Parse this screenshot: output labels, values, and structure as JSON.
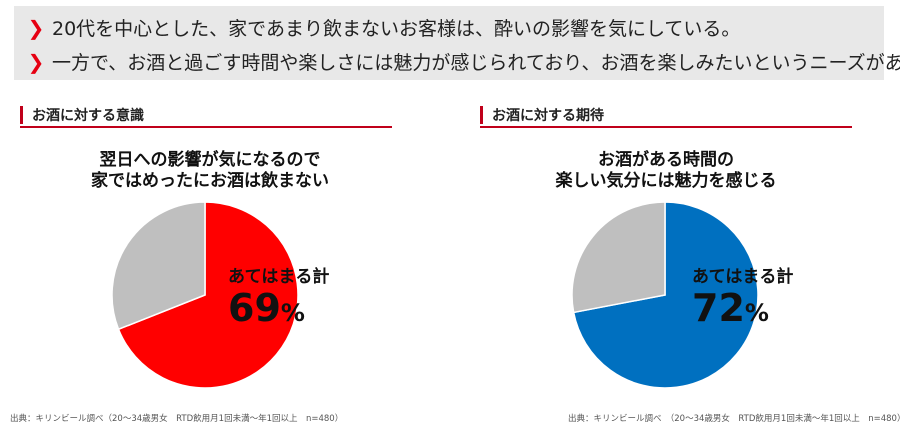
{
  "summary": {
    "items": [
      "20代を中心とした、家であまり飲まないお客様は、酔いの影響を気にしている。",
      "一方で、お酒と過ごす時間や楽しさには魅力が感じられており、お酒を楽しみたいというニーズがある。"
    ]
  },
  "left": {
    "section_title": "お酒に対する意識",
    "question_line1": "翌日への影響が気になるので",
    "question_line2": "家ではめったにお酒は飲まない",
    "callout_label": "あてはまる計",
    "callout_value": "69",
    "callout_unit": "%",
    "source": "出典：キリンビール調べ（20～34歳男女　RTD飲用月1回未満～年1回以上　n=480）"
  },
  "right": {
    "section_title": "お酒に対する期待",
    "question_line1": "お酒がある時間の",
    "question_line2": "楽しい気分には魅力を感じる",
    "callout_label": "あてはまる計",
    "callout_value": "72",
    "callout_unit": "%",
    "source": "出典：キリンビール調べ　（20～34歳男女　RTD飲用月1回未満～年1回以上　n=480）"
  },
  "colors": {
    "accent": "#e60012",
    "left_slice": "#ff0000",
    "right_slice": "#0070c0",
    "rest_slice": "#bfbfbf"
  },
  "chart_data": [
    {
      "type": "pie",
      "title": "翌日への影響が気になるので 家ではめったにお酒は飲まない",
      "slices": [
        {
          "label": "あてはまる計",
          "value": 69,
          "color": "#ff0000"
        },
        {
          "label": "",
          "value": 31,
          "color": "#bfbfbf"
        }
      ]
    },
    {
      "type": "pie",
      "title": "お酒がある時間の 楽しい気分には魅力を感じる",
      "slices": [
        {
          "label": "あてはまる計",
          "value": 72,
          "color": "#0070c0"
        },
        {
          "label": "",
          "value": 28,
          "color": "#bfbfbf"
        }
      ]
    }
  ]
}
